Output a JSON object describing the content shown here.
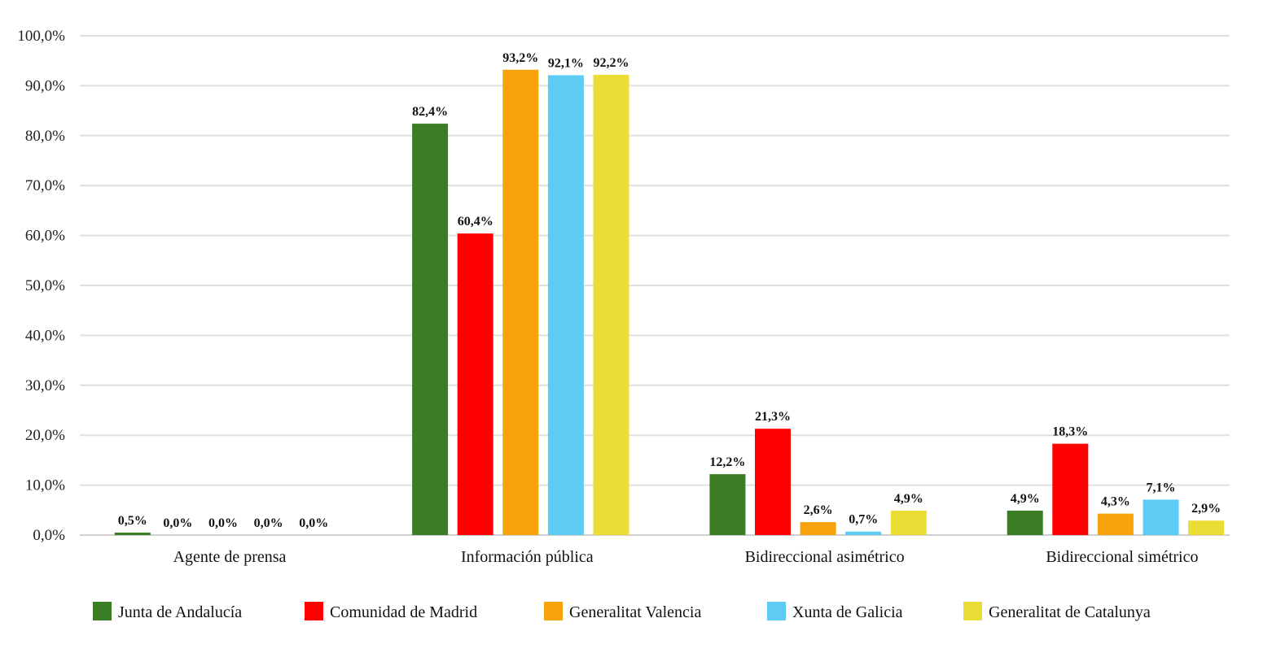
{
  "chart_data": {
    "type": "bar",
    "title": "",
    "xlabel": "",
    "ylabel": "",
    "ylim": [
      0,
      100
    ],
    "yticks": [
      "0,0%",
      "10,0%",
      "20,0%",
      "30,0%",
      "40,0%",
      "50,0%",
      "60,0%",
      "70,0%",
      "80,0%",
      "90,0%",
      "100,0%"
    ],
    "grid": true,
    "legend_position": "bottom",
    "categories": [
      "Agente de prensa",
      "Información pública",
      "Bidireccional asimétrico",
      "Bidireccional simétrico"
    ],
    "series": [
      {
        "name": "Junta de Andalucía",
        "color": "#3a7d25",
        "values": [
          0.5,
          82.4,
          12.2,
          4.9
        ],
        "labels": [
          "0,5%",
          "82,4%",
          "12,2%",
          "4,9%"
        ]
      },
      {
        "name": "Comunidad de Madrid",
        "color": "#ff0000",
        "values": [
          0.0,
          60.4,
          21.3,
          18.3
        ],
        "labels": [
          "0,0%",
          "60,4%",
          "21,3%",
          "18,3%"
        ]
      },
      {
        "name": "Generalitat Valencia",
        "color": "#f7a40c",
        "values": [
          0.0,
          93.2,
          2.6,
          4.3
        ],
        "labels": [
          "0,0%",
          "93,2%",
          "2,6%",
          "4,3%"
        ]
      },
      {
        "name": "Xunta de Galicia",
        "color": "#5ecbf3",
        "values": [
          0.0,
          92.1,
          0.7,
          7.1
        ],
        "labels": [
          "0,0%",
          "92,1%",
          "0,7%",
          "7,1%"
        ]
      },
      {
        "name": "Generalitat de Catalunya",
        "color": "#ebdc36",
        "values": [
          0.0,
          92.2,
          4.9,
          2.9
        ],
        "labels": [
          "0,0%",
          "92,2%",
          "4,9%",
          "2,9%"
        ]
      }
    ]
  }
}
